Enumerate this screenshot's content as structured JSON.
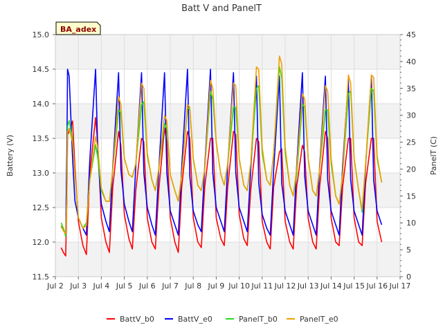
{
  "chart_data": {
    "type": "line",
    "title": "Batt V and PanelT",
    "badge": "BA_adex",
    "ylabel_left": "Battery (V)",
    "ylabel_right": "PanelT (C)",
    "xlabel": "",
    "x_tick_labels": [
      "Jul 2",
      "Jul 3",
      "Jul 4",
      "Jul 5",
      "Jul 6",
      "Jul 7",
      "Jul 8",
      "Jul 9",
      "Jul 10",
      "Jul 11",
      "Jul 12",
      "Jul 13",
      "Jul 14",
      "Jul 15",
      "Jul 16",
      "Jul 17"
    ],
    "xlim": [
      2,
      17
    ],
    "ylim_left": [
      11.5,
      15.0
    ],
    "ylim_right": [
      0,
      45
    ],
    "y_left_ticks": [
      "11.5",
      "12.0",
      "12.5",
      "13.0",
      "13.5",
      "14.0",
      "14.5",
      "15.0"
    ],
    "y_right_ticks": [
      "0",
      "5",
      "10",
      "15",
      "20",
      "25",
      "30",
      "35",
      "40",
      "45"
    ],
    "grid": true,
    "x": [
      2.25,
      2.35,
      2.45,
      2.5,
      2.53,
      2.6,
      2.75,
      2.85,
      3.0,
      3.2,
      3.35,
      3.5,
      3.75,
      3.85,
      4.0,
      4.2,
      4.35,
      4.5,
      4.75,
      4.85,
      5.0,
      5.2,
      5.35,
      5.5,
      5.75,
      5.85,
      6.0,
      6.2,
      6.35,
      6.5,
      6.75,
      6.85,
      7.0,
      7.2,
      7.35,
      7.5,
      7.75,
      7.85,
      8.0,
      8.2,
      8.35,
      8.5,
      8.75,
      8.85,
      9.0,
      9.2,
      9.35,
      9.5,
      9.75,
      9.85,
      10.0,
      10.2,
      10.35,
      10.5,
      10.75,
      10.85,
      11.0,
      11.2,
      11.35,
      11.5,
      11.75,
      11.85,
      12.0,
      12.2,
      12.35,
      12.5,
      12.75,
      12.85,
      13.0,
      13.2,
      13.35,
      13.5,
      13.75,
      13.85,
      14.0,
      14.2,
      14.35,
      14.5,
      14.75,
      14.85,
      15.0,
      15.2,
      15.35,
      15.5,
      15.75,
      15.85,
      16.0,
      16.2
    ],
    "series": [
      {
        "name": "BattV_b0",
        "axis": "left",
        "color": "#ff0000",
        "values": [
          11.92,
          11.85,
          11.8,
          12.6,
          13.55,
          13.6,
          13.75,
          13.1,
          12.3,
          11.95,
          11.82,
          13.0,
          13.8,
          13.4,
          12.35,
          12.0,
          11.85,
          12.8,
          13.6,
          13.4,
          12.4,
          12.05,
          11.9,
          12.75,
          13.5,
          13.45,
          12.35,
          12.0,
          11.9,
          12.75,
          13.65,
          13.45,
          12.35,
          12.0,
          11.85,
          12.8,
          13.6,
          13.5,
          12.35,
          12.0,
          11.92,
          12.8,
          13.5,
          13.5,
          12.35,
          12.05,
          11.95,
          12.8,
          13.6,
          13.55,
          12.4,
          12.05,
          11.95,
          12.75,
          13.5,
          13.45,
          12.3,
          12.0,
          11.9,
          12.8,
          13.3,
          13.35,
          12.3,
          12.0,
          11.9,
          12.8,
          13.4,
          13.3,
          12.35,
          12.0,
          11.9,
          12.8,
          13.6,
          13.5,
          12.35,
          12.0,
          11.95,
          12.8,
          13.5,
          13.5,
          12.35,
          12.0,
          11.95,
          12.85,
          13.5,
          13.5,
          12.3,
          12.0
        ]
      },
      {
        "name": "BattV_e0",
        "axis": "left",
        "color": "#0000ff",
        "values": [
          12.22,
          12.18,
          12.12,
          13.3,
          14.5,
          14.4,
          13.2,
          12.6,
          12.35,
          12.2,
          12.1,
          13.2,
          14.5,
          13.25,
          12.55,
          12.3,
          12.15,
          13.1,
          14.45,
          13.05,
          12.55,
          12.3,
          12.15,
          13.1,
          14.45,
          13.0,
          12.5,
          12.25,
          12.1,
          13.05,
          14.45,
          13.0,
          12.45,
          12.25,
          12.1,
          13.1,
          14.5,
          12.95,
          12.45,
          12.25,
          12.15,
          13.1,
          14.5,
          13.0,
          12.5,
          12.3,
          12.15,
          13.1,
          14.45,
          13.0,
          12.5,
          12.3,
          12.15,
          13.05,
          14.4,
          12.85,
          12.4,
          12.2,
          12.1,
          13.05,
          14.4,
          12.85,
          12.45,
          12.25,
          12.1,
          13.1,
          14.45,
          12.95,
          12.45,
          12.25,
          12.1,
          13.1,
          14.4,
          12.9,
          12.45,
          12.25,
          12.1,
          13.1,
          14.35,
          12.9,
          12.45,
          12.25,
          12.1,
          13.1,
          14.4,
          12.9,
          12.45,
          12.25
        ]
      },
      {
        "name": "PanelT_b0",
        "axis": "right",
        "color": "#22dd22",
        "values": [
          10.0,
          9.0,
          7.5,
          15.0,
          28.0,
          29.0,
          25.5,
          19.0,
          11.0,
          9.0,
          10.0,
          18.0,
          24.5,
          22.0,
          16.0,
          14.0,
          14.0,
          20.0,
          31.0,
          30.5,
          22.0,
          19.0,
          18.5,
          21.0,
          32.0,
          32.5,
          22.5,
          18.0,
          16.0,
          20.0,
          28.5,
          27.5,
          19.0,
          16.0,
          14.0,
          19.0,
          31.5,
          31.0,
          22.0,
          17.0,
          16.0,
          20.0,
          34.5,
          33.0,
          25.0,
          19.0,
          17.0,
          21.0,
          31.5,
          31.5,
          22.0,
          17.0,
          16.0,
          21.0,
          35.0,
          35.5,
          23.0,
          18.0,
          17.0,
          23.0,
          39.0,
          37.0,
          23.0,
          17.0,
          15.0,
          19.0,
          32.0,
          31.5,
          22.0,
          16.0,
          15.0,
          20.0,
          31.0,
          31.0,
          21.0,
          15.0,
          13.5,
          19.0,
          34.0,
          34.5,
          22.0,
          16.0,
          12.0,
          21.0,
          35.0,
          34.5,
          22.0,
          17.5
        ]
      },
      {
        "name": "PanelT_e0",
        "axis": "right",
        "color": "#f0a000",
        "values": [
          9.5,
          8.5,
          8.0,
          15.0,
          27.0,
          27.5,
          25.0,
          19.0,
          11.0,
          9.0,
          9.5,
          18.0,
          26.0,
          24.0,
          16.5,
          14.0,
          14.0,
          20.0,
          33.5,
          32.0,
          22.0,
          19.0,
          18.5,
          21.0,
          36.0,
          35.0,
          23.0,
          18.0,
          16.0,
          20.0,
          30.0,
          29.0,
          19.0,
          16.0,
          14.0,
          19.0,
          32.0,
          31.5,
          22.0,
          17.0,
          16.0,
          20.0,
          36.5,
          35.0,
          25.0,
          19.0,
          17.0,
          21.0,
          36.0,
          35.5,
          22.0,
          17.0,
          16.0,
          21.0,
          39.0,
          38.5,
          24.0,
          18.0,
          17.0,
          23.0,
          41.0,
          39.5,
          24.0,
          17.0,
          15.0,
          20.0,
          34.0,
          33.0,
          22.0,
          16.0,
          15.0,
          20.0,
          35.5,
          34.5,
          22.0,
          15.0,
          13.5,
          19.0,
          37.5,
          36.0,
          22.0,
          16.0,
          12.5,
          21.0,
          37.5,
          37.0,
          22.5,
          17.5
        ]
      }
    ]
  }
}
